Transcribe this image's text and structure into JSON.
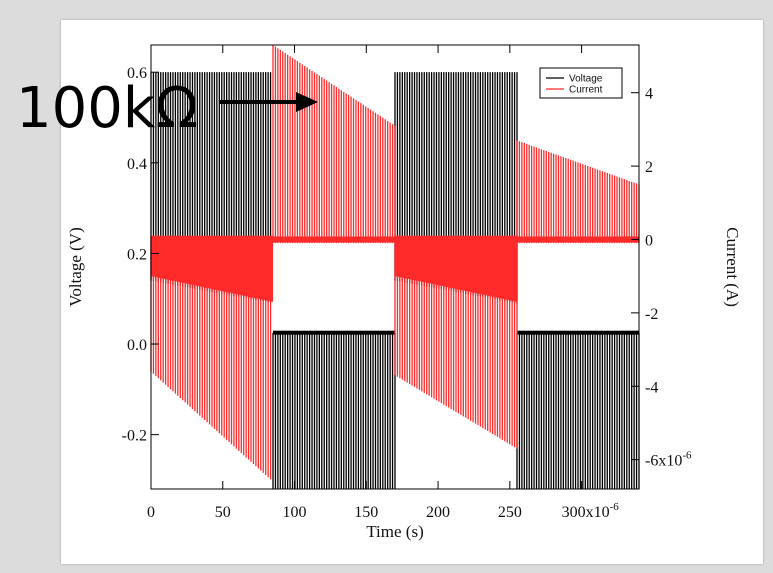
{
  "chart_data": {
    "type": "line",
    "xlabel": "Time (s)",
    "ylabel_left": "Voltage (V)",
    "ylabel_right": "Current (A)",
    "xlim": [
      0,
      340
    ],
    "ylim_left": [
      -0.32,
      0.66
    ],
    "ylim_right": [
      -6.8,
      5.3
    ],
    "x_ticks": [
      0,
      50,
      100,
      150,
      200,
      250,
      300
    ],
    "x_tick_labels": [
      "0",
      "50",
      "100",
      "150",
      "200",
      "250",
      "300x10-6"
    ],
    "y_left_ticks": [
      -0.2,
      0.0,
      0.2,
      0.4,
      0.6
    ],
    "y_left_tick_labels": [
      "-0.2",
      "0.0",
      "0.2",
      "0.4",
      "0.6"
    ],
    "y_right_ticks": [
      -6,
      -4,
      -2,
      0,
      2,
      4
    ],
    "y_right_tick_labels": [
      "-6x10-6",
      "-4",
      "-2",
      "0",
      "2",
      "4"
    ],
    "legend_position": "top-right",
    "grid": false,
    "series": [
      {
        "name": "Voltage",
        "axis": "left",
        "color": "#000000",
        "phases": [
          {
            "t_start": 0,
            "t_end": 85,
            "upper": 0.6,
            "lower_start": 0.14,
            "lower_end": 0.09,
            "pulse_period": 1.7
          },
          {
            "t_start": 85,
            "t_end": 170,
            "upper": 0.025,
            "lower": -0.32,
            "pulse_period": 1.7
          },
          {
            "t_start": 170,
            "t_end": 255,
            "upper": 0.6,
            "lower_start": 0.14,
            "lower_end": 0.09,
            "pulse_period": 1.7
          },
          {
            "t_start": 255,
            "t_end": 340,
            "upper": 0.025,
            "lower": -0.32,
            "pulse_period": 1.7
          }
        ]
      },
      {
        "name": "Current",
        "axis": "right",
        "color": "#ff2a2a",
        "phases": [
          {
            "t_start": 0,
            "t_end": 85,
            "upper": 0.1,
            "lower_start": -3.6,
            "lower_end": -6.6,
            "band_low_start": -1.0,
            "band_low_end": -1.7,
            "pulse_period": 1.7
          },
          {
            "t_start": 85,
            "t_end": 170,
            "upper_start": 5.3,
            "upper_end": 3.1,
            "lower": -0.1,
            "pulse_period": 1.7
          },
          {
            "t_start": 170,
            "t_end": 255,
            "upper": 0.1,
            "lower_start": -3.7,
            "lower_end": -5.7,
            "band_low_start": -1.0,
            "band_low_end": -1.7,
            "pulse_period": 1.7
          },
          {
            "t_start": 255,
            "t_end": 340,
            "upper_start": 2.7,
            "upper_end": 1.5,
            "lower": -0.1,
            "pulse_period": 1.7
          }
        ]
      }
    ]
  },
  "annotation": {
    "text": "100kΩ"
  },
  "colors": {
    "voltage": "#000000",
    "current": "#ff2a2a",
    "background": "#dcdcdc"
  }
}
